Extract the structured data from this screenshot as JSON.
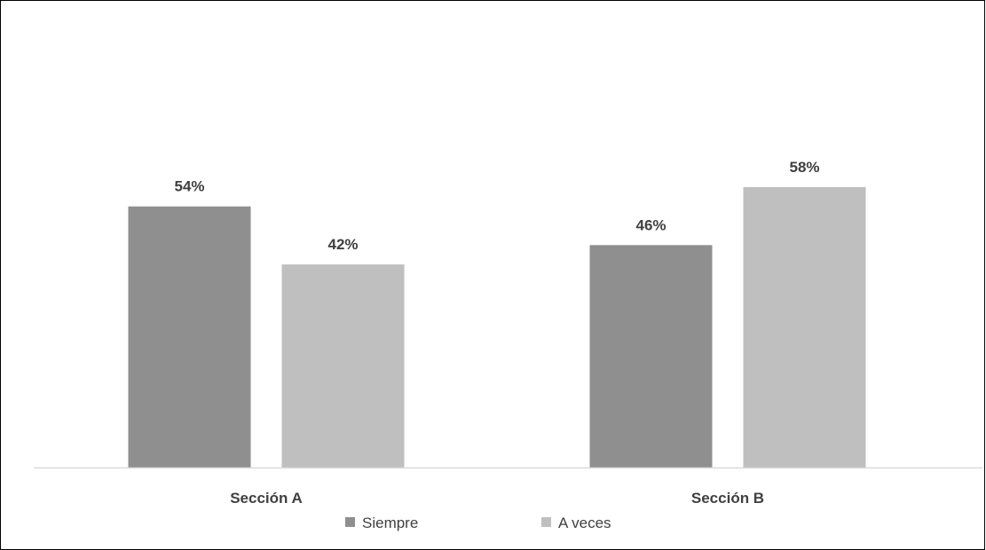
{
  "chart_data": {
    "type": "bar",
    "categories": [
      "Sección A",
      "Sección B"
    ],
    "series": [
      {
        "name": "Siempre",
        "values": [
          54,
          46
        ],
        "labels": [
          "54%",
          "46%"
        ],
        "color": "#8f8f8f"
      },
      {
        "name": "A veces",
        "values": [
          42,
          58
        ],
        "labels": [
          "42%",
          "58%"
        ],
        "color": "#bfbfbf"
      }
    ],
    "ylim": [
      0,
      70
    ],
    "grid": false,
    "legend": "bottom",
    "axis_color": "#d9d9d9"
  }
}
